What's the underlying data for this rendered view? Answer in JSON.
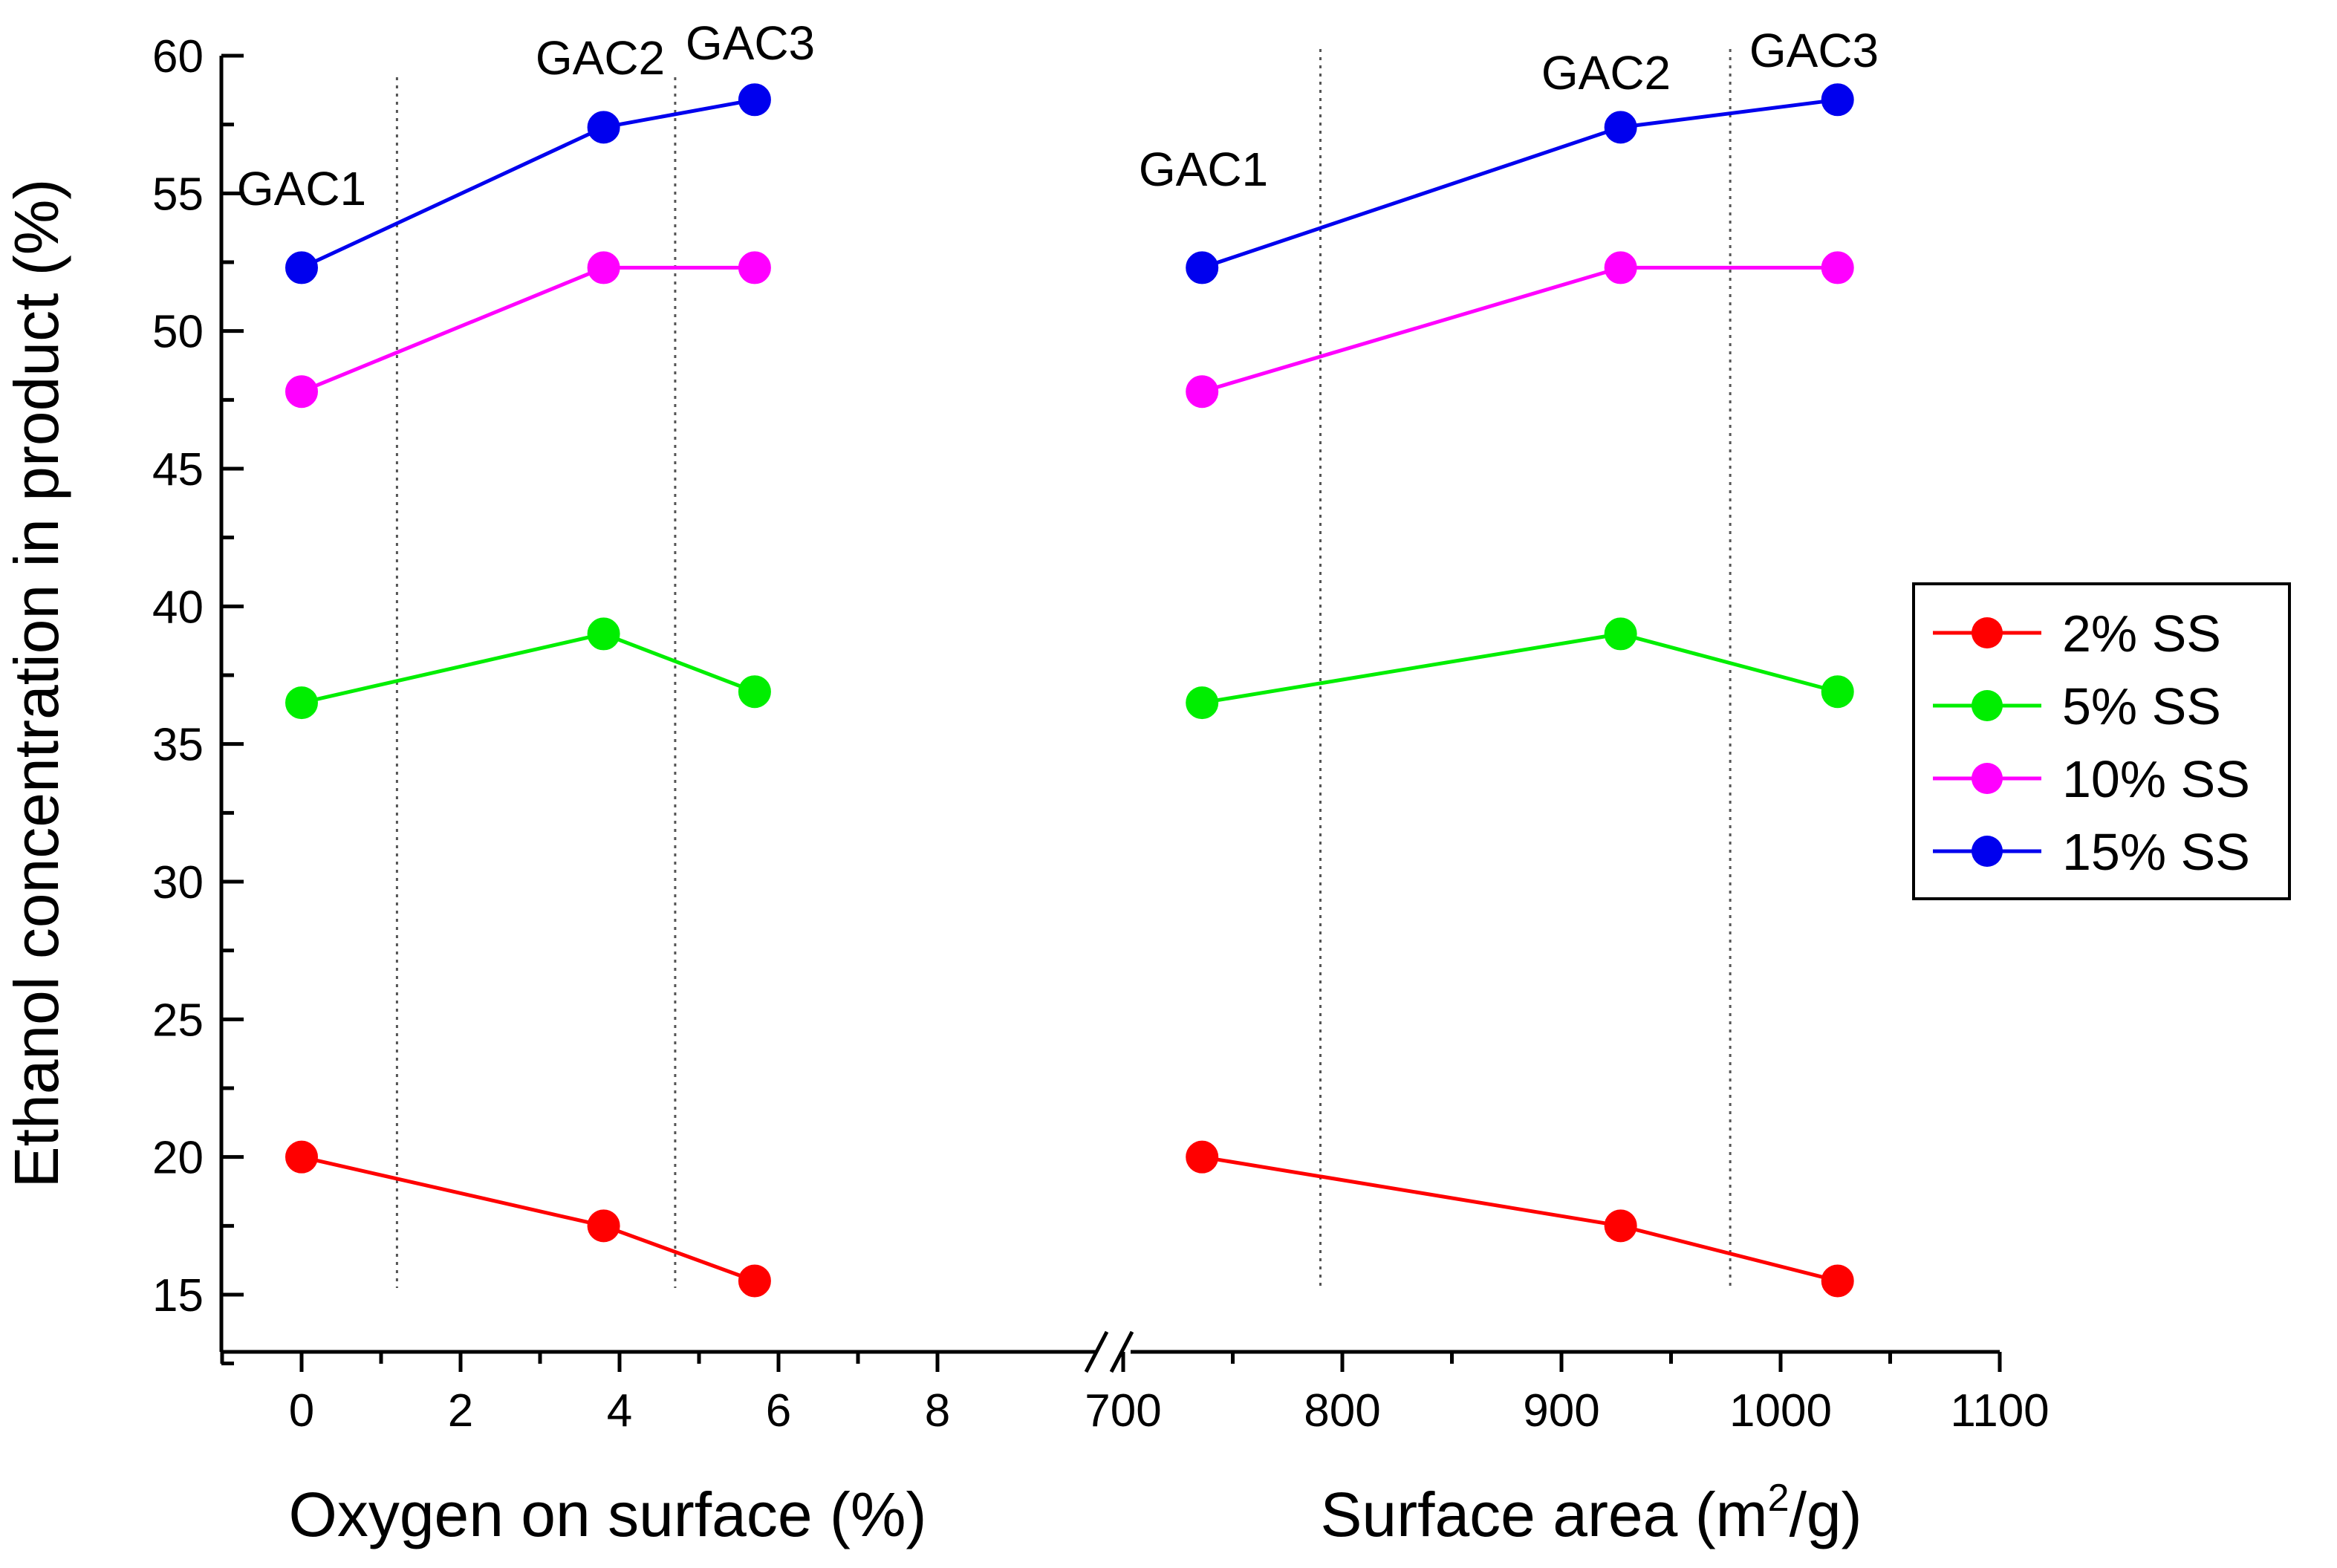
{
  "chart_data": {
    "type": "line",
    "ylabel": "Ethanol concentration in product (%)",
    "ylim": [
      13,
      60
    ],
    "yticks": [
      15,
      20,
      25,
      30,
      35,
      40,
      45,
      50,
      55,
      60
    ],
    "grid": false,
    "legend_position": "right",
    "panels": [
      {
        "xlabel": "Oxygen on surface (%)",
        "xlabel_parts": [
          "Oxygen on surface (%)"
        ],
        "xlim": [
          -1,
          10
        ],
        "xticks": [
          0,
          2,
          4,
          6,
          8
        ],
        "x": [
          0,
          3.8,
          5.7
        ],
        "point_labels": [
          "GAC1",
          "GAC2",
          "GAC3"
        ],
        "divider_x": [
          1.2,
          4.7
        ]
      },
      {
        "xlabel_parts": [
          "Surface area (m",
          "2",
          "/g)"
        ],
        "xlim": [
          700,
          1100
        ],
        "xticks": [
          700,
          800,
          900,
          1000,
          1100
        ],
        "x": [
          736,
          927,
          1026
        ],
        "point_labels": [
          "GAC1",
          "GAC2",
          "GAC3"
        ],
        "divider_x": [
          790,
          977
        ]
      }
    ],
    "series": [
      {
        "name": "2% SS",
        "color": "#ff0000",
        "values": [
          20.0,
          17.5,
          15.5
        ]
      },
      {
        "name": "5% SS",
        "color": "#00ee00",
        "values": [
          36.5,
          39.0,
          36.9
        ]
      },
      {
        "name": "10% SS",
        "color": "#ff00ff",
        "values": [
          47.8,
          52.3,
          52.3
        ]
      },
      {
        "name": "15% SS",
        "color": "#0000ee",
        "values": [
          52.3,
          57.4,
          58.4
        ]
      }
    ]
  }
}
